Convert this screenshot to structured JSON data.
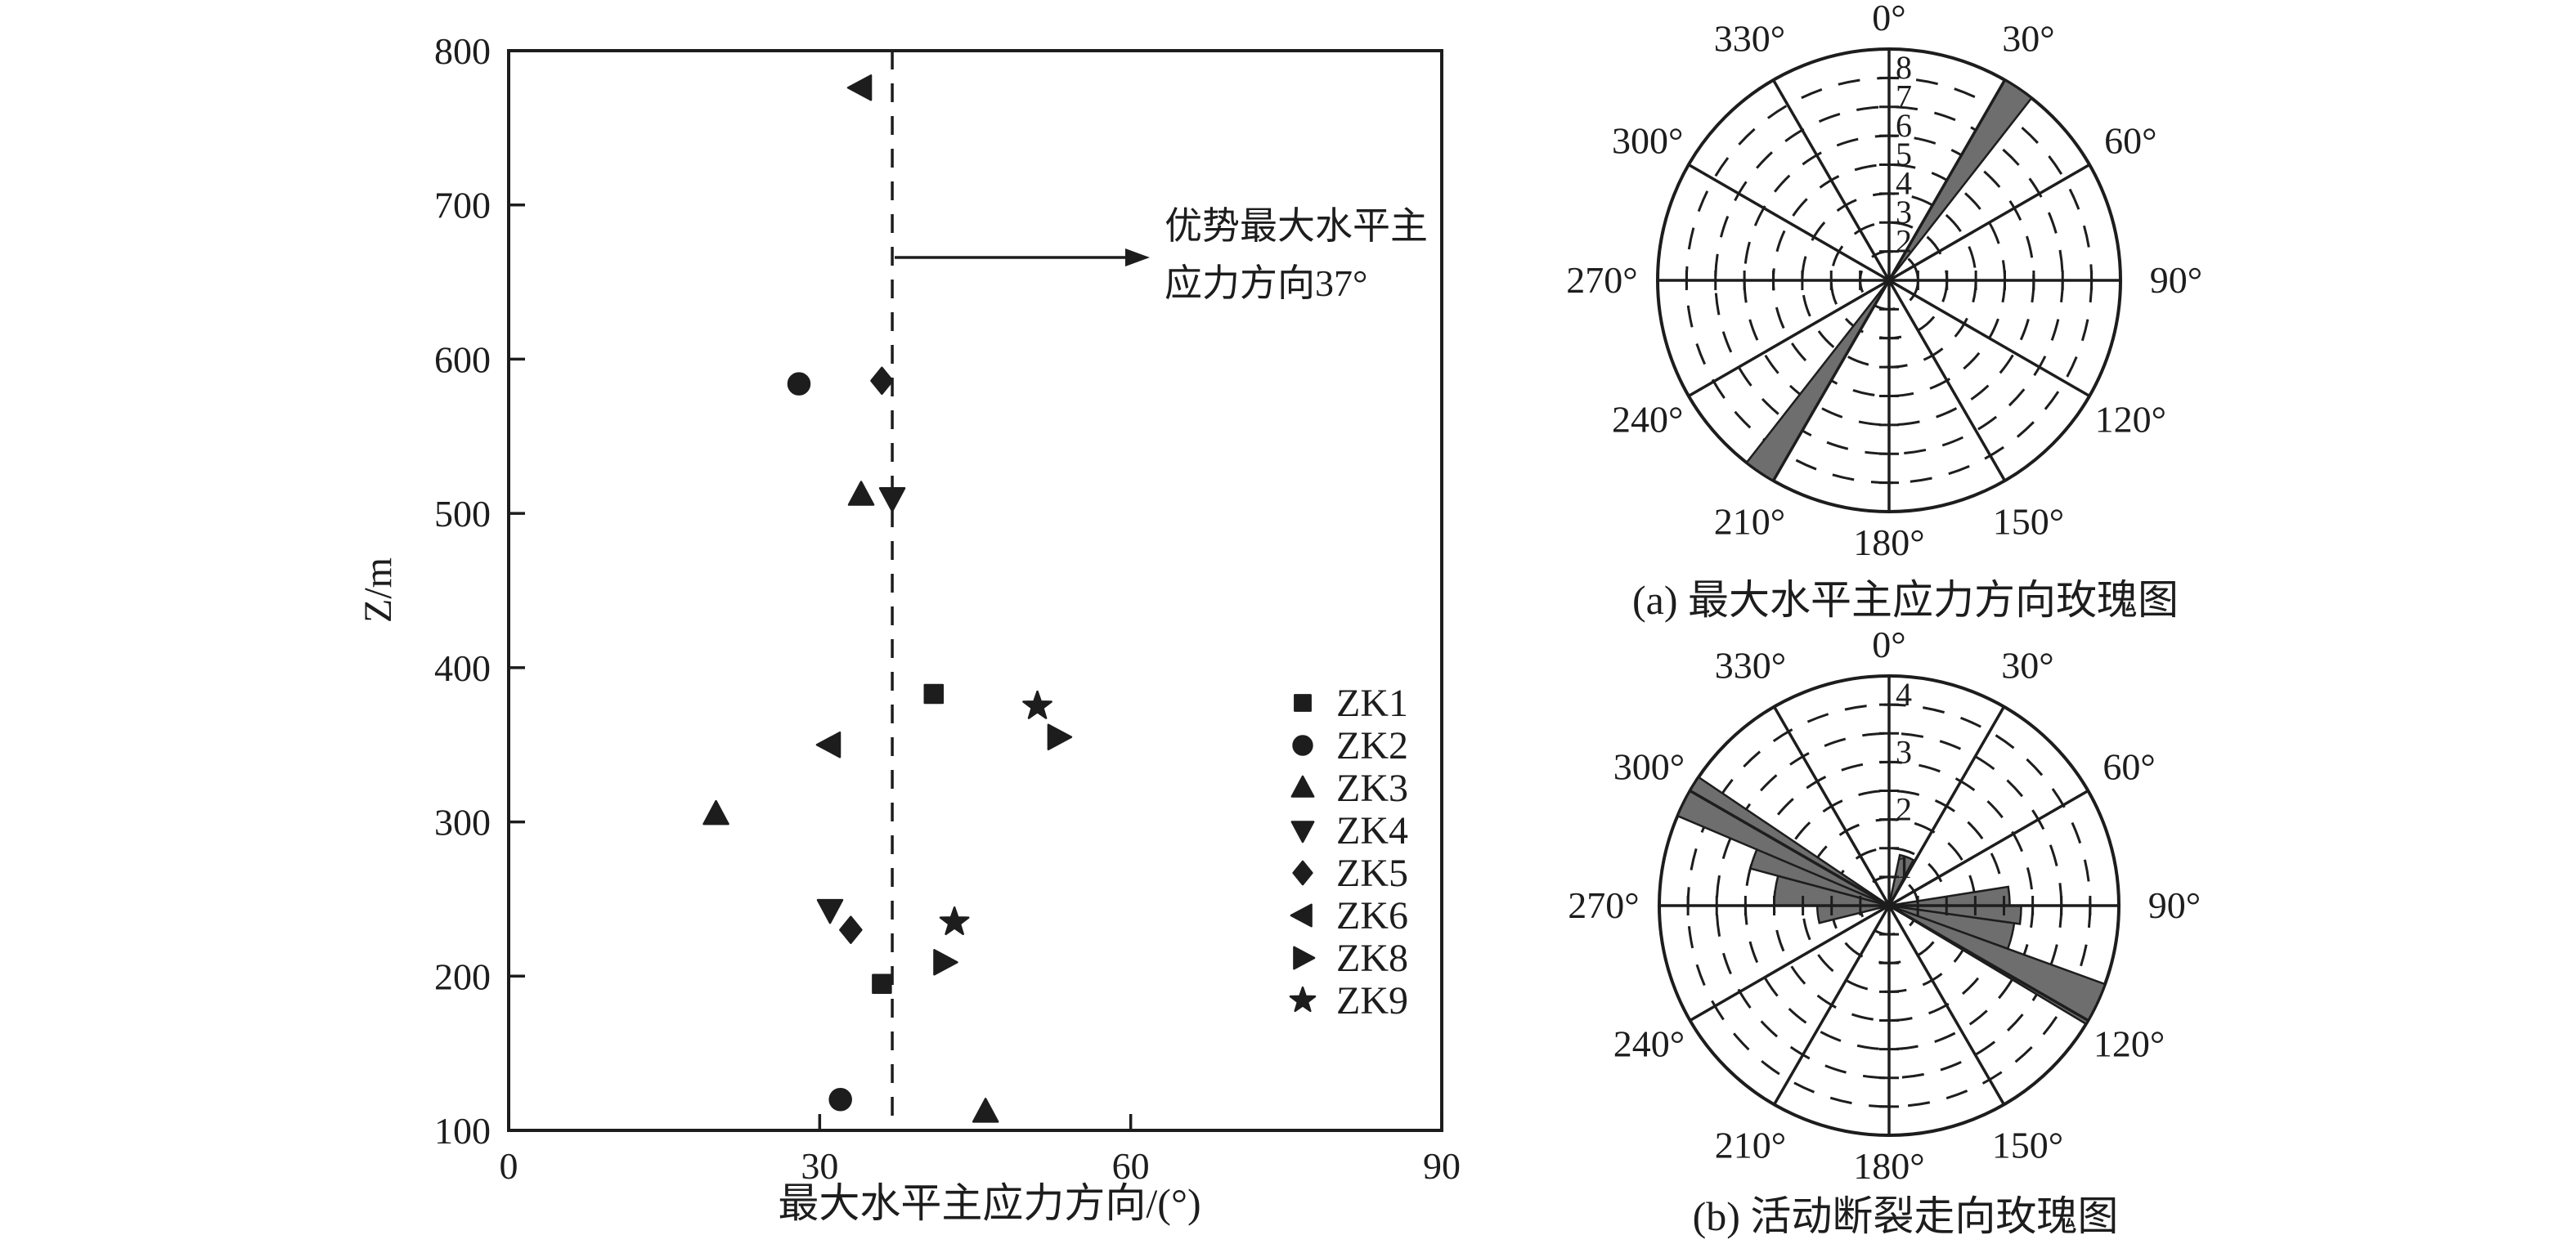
{
  "colors": {
    "ink": "#1d1d1d",
    "petal": "#6e6e6e",
    "background": "#ffffff"
  },
  "chart_data": [
    {
      "type": "scatter",
      "title": "",
      "xlabel": "最大水平主应力方向/(°)",
      "ylabel": "Z/m",
      "xlim": [
        0,
        90
      ],
      "ylim": [
        100,
        800
      ],
      "x_ticks": [
        "0",
        "30",
        "60",
        "90"
      ],
      "y_ticks": [
        "100",
        "200",
        "300",
        "400",
        "500",
        "600",
        "700",
        "800"
      ],
      "grid": false,
      "ref_line": {
        "x": 37,
        "style": "dashed"
      },
      "annotation": {
        "lines": [
          "优势最大水平主",
          "应力方向37°"
        ],
        "arrow_points_from_x": 37,
        "arrow_direction": "right"
      },
      "legend_position": "inside-right",
      "series": [
        {
          "name": "ZK1",
          "marker": "square",
          "points": [
            [
              41,
              383
            ],
            [
              36,
              195
            ]
          ]
        },
        {
          "name": "ZK2",
          "marker": "circle",
          "points": [
            [
              28,
              584
            ],
            [
              32,
              120
            ]
          ]
        },
        {
          "name": "ZK3",
          "marker": "triangle-up",
          "points": [
            [
              34,
              512
            ],
            [
              20,
              305
            ],
            [
              46,
              112
            ]
          ]
        },
        {
          "name": "ZK4",
          "marker": "triangle-down",
          "points": [
            [
              37,
              510
            ],
            [
              31,
              243
            ]
          ]
        },
        {
          "name": "ZK5",
          "marker": "diamond",
          "points": [
            [
              36,
              586
            ],
            [
              33,
              230
            ]
          ]
        },
        {
          "name": "ZK6",
          "marker": "triangle-left",
          "points": [
            [
              34,
              776
            ],
            [
              31,
              350
            ]
          ]
        },
        {
          "name": "ZK8",
          "marker": "triangle-right",
          "points": [
            [
              53,
              355
            ],
            [
              42,
              209
            ]
          ]
        },
        {
          "name": "ZK9",
          "marker": "star",
          "points": [
            [
              51,
              375
            ],
            [
              43,
              235
            ]
          ]
        }
      ]
    },
    {
      "type": "rose",
      "caption": "(a) 最大水平主应力方向玫瑰图",
      "rlim": [
        0,
        8
      ],
      "ring_step": 1,
      "angle_step": 30,
      "r_tick_labels": [
        "2",
        "3",
        "4",
        "5",
        "6",
        "7",
        "8"
      ],
      "angle_labels": [
        "0°",
        "30°",
        "60°",
        "90°",
        "120°",
        "150°",
        "180°",
        "210°",
        "240°",
        "270°",
        "300°",
        "330°"
      ],
      "petals": [
        {
          "start": 30,
          "end": 38,
          "value": 8
        },
        {
          "start": 210,
          "end": 218,
          "value": 8
        }
      ]
    },
    {
      "type": "rose",
      "caption": "(b) 活动断裂走向玫瑰图",
      "rlim": [
        0,
        4
      ],
      "ring_step": 0.5,
      "angle_step": 30,
      "r_tick_labels": [
        "1",
        "2",
        "3",
        "4"
      ],
      "angle_labels": [
        "0°",
        "30°",
        "60°",
        "90°",
        "120°",
        "150°",
        "180°",
        "210°",
        "240°",
        "270°",
        "300°",
        "330°"
      ],
      "petals": [
        {
          "start": 12,
          "end": 28,
          "value": 0.9
        },
        {
          "start": 81,
          "end": 90,
          "value": 2.1
        },
        {
          "start": 90,
          "end": 98,
          "value": 2.3
        },
        {
          "start": 98,
          "end": 110,
          "value": 2.2
        },
        {
          "start": 110,
          "end": 121,
          "value": 4
        },
        {
          "start": 256,
          "end": 270,
          "value": 1.25
        },
        {
          "start": 270,
          "end": 285,
          "value": 2.0
        },
        {
          "start": 285,
          "end": 294,
          "value": 2.5
        },
        {
          "start": 293,
          "end": 304,
          "value": 4
        }
      ]
    }
  ]
}
